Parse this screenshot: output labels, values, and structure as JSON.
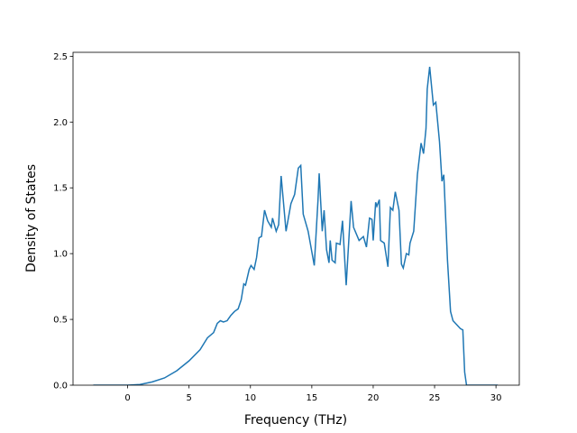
{
  "chart_data": {
    "type": "line",
    "x_label": "Frequency (THz)",
    "y_label": "Density of States",
    "xlim": [
      -4.45,
      31.9
    ],
    "ylim": [
      0,
      2.53
    ],
    "xticks": [
      0,
      5,
      10,
      15,
      20,
      25,
      30
    ],
    "yticks": [
      {
        "value": 0,
        "label": "0.0"
      },
      {
        "value": 0.5,
        "label": "0.5"
      },
      {
        "value": 1,
        "label": "1.0"
      },
      {
        "value": 1.5,
        "label": "1.5"
      },
      {
        "value": 2,
        "label": "2.0"
      },
      {
        "value": 2.5,
        "label": "2.5"
      }
    ],
    "series": [
      {
        "color": "#1f77b4",
        "x": [
          -2.8,
          -1,
          0,
          1,
          2,
          3,
          4,
          5,
          5.9,
          6.5,
          7.0,
          7.3,
          7.55,
          7.8,
          8.1,
          8.4,
          8.7,
          9.0,
          9.25,
          9.46,
          9.6,
          9.9,
          10.05,
          10.3,
          10.5,
          10.7,
          10.9,
          11.15,
          11.4,
          11.7,
          11.8,
          12.1,
          12.3,
          12.5,
          12.9,
          13.3,
          13.6,
          13.9,
          14.1,
          14.3,
          14.7,
          15.2,
          15.5,
          15.6,
          15.85,
          16.0,
          16.2,
          16.4,
          16.5,
          16.65,
          16.9,
          17.0,
          17.3,
          17.5,
          17.8,
          18.2,
          18.4,
          18.85,
          19.2,
          19.45,
          19.7,
          19.9,
          20.0,
          20.2,
          20.3,
          20.5,
          20.6,
          20.9,
          21.2,
          21.4,
          21.6,
          21.8,
          22.1,
          22.3,
          22.45,
          22.7,
          22.9,
          23.0,
          23.3,
          23.6,
          23.9,
          24.1,
          24.3,
          24.4,
          24.6,
          24.9,
          25.1,
          25.4,
          25.6,
          25.75,
          26.05,
          26.3,
          26.5,
          26.8,
          27.1,
          27.3,
          27.45,
          27.6,
          30.0,
          30.15
        ],
        "values": [
          0,
          0,
          0,
          0.005,
          0.025,
          0.055,
          0.11,
          0.185,
          0.27,
          0.36,
          0.4,
          0.47,
          0.49,
          0.48,
          0.49,
          0.53,
          0.56,
          0.58,
          0.65,
          0.77,
          0.76,
          0.88,
          0.91,
          0.88,
          0.97,
          1.12,
          1.13,
          1.33,
          1.25,
          1.2,
          1.27,
          1.17,
          1.22,
          1.59,
          1.17,
          1.38,
          1.45,
          1.65,
          1.67,
          1.3,
          1.17,
          0.91,
          1.4,
          1.61,
          1.17,
          1.33,
          1.03,
          0.93,
          1.1,
          0.95,
          0.93,
          1.08,
          1.07,
          1.25,
          0.76,
          1.4,
          1.2,
          1.1,
          1.13,
          1.05,
          1.27,
          1.26,
          1.1,
          1.39,
          1.36,
          1.41,
          1.1,
          1.08,
          0.9,
          1.35,
          1.33,
          1.47,
          1.33,
          0.92,
          0.89,
          1.0,
          0.99,
          1.08,
          1.17,
          1.6,
          1.84,
          1.76,
          1.95,
          2.25,
          2.42,
          2.13,
          2.15,
          1.85,
          1.55,
          1.6,
          0.95,
          0.56,
          0.49,
          0.46,
          0.43,
          0.42,
          0.1,
          0,
          0,
          0
        ]
      }
    ]
  }
}
